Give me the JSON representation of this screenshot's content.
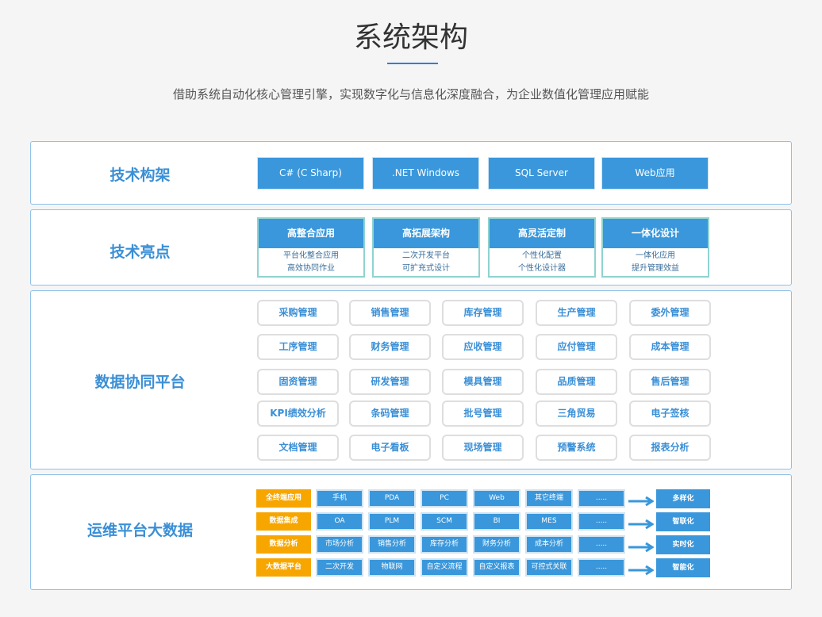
{
  "header": {
    "title": "系统架构",
    "subtitle": "借助系统自动化核心管理引擎，实现数字化与信息化深度融合，为企业数值化管理应用赋能"
  },
  "tech_stack": {
    "label": "技术构架",
    "items": [
      "C#  (C Sharp)",
      ".NET Windows",
      "SQL Server",
      "Web应用"
    ]
  },
  "highlights": {
    "label": "技术亮点",
    "items": [
      {
        "title": "高整合应用",
        "lines": [
          "平台化整合应用",
          "高效协同作业"
        ]
      },
      {
        "title": "高拓展架构",
        "lines": [
          "二次开发平台",
          "可扩充式设计"
        ]
      },
      {
        "title": "高灵活定制",
        "lines": [
          "个性化配置",
          "个性化设计器"
        ]
      },
      {
        "title": "一体化设计",
        "lines": [
          "一体化应用",
          "提升管理效益"
        ]
      }
    ]
  },
  "platform": {
    "label": "数据协同平台",
    "modules": [
      [
        "采购管理",
        "销售管理",
        "库存管理",
        "生产管理",
        "委外管理"
      ],
      [
        "工序管理",
        "财务管理",
        "应收管理",
        "应付管理",
        "成本管理"
      ],
      [
        "固资管理",
        "研发管理",
        "模具管理",
        "品质管理",
        "售后管理"
      ],
      [
        "KPI绩效分析",
        "条码管理",
        "批号管理",
        "三角贸易",
        "电子签核"
      ],
      [
        "文档管理",
        "电子看板",
        "现场管理",
        "预警系统",
        "报表分析"
      ]
    ]
  },
  "ops": {
    "label": "运维平台大数据",
    "rows": [
      {
        "category": "全终端应用",
        "cells": [
          "手机",
          "PDA",
          "PC",
          "Web",
          "其它终端",
          "....."
        ],
        "result": "多样化"
      },
      {
        "category": "数据集成",
        "cells": [
          "OA",
          "PLM",
          "SCM",
          "BI",
          "MES",
          "....."
        ],
        "result": "智联化"
      },
      {
        "category": "数据分析",
        "cells": [
          "市场分析",
          "销售分析",
          "库存分析",
          "财务分析",
          "成本分析",
          "....."
        ],
        "result": "实时化"
      },
      {
        "category": "大数据平台",
        "cells": [
          "二次开发",
          "物联网",
          "自定义流程",
          "自定义报表",
          "可控式关联",
          "....."
        ],
        "result": "智能化"
      }
    ]
  }
}
